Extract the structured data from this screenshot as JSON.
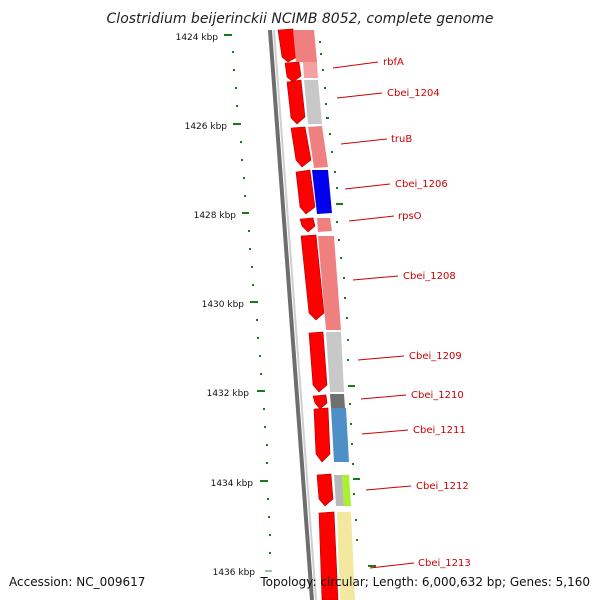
{
  "title": "Clostridium beijerinckii NCIMB 8052, complete genome",
  "accession": "Accession: NC_009617",
  "summary": "Topology: circular; Length: 6,000,632 bp; Genes: 5,160",
  "colors": {
    "ring_forward": "#ff0000",
    "gene_highlight": "#cc0000",
    "backbone": "#888888",
    "gc_ticks": "#1a7a1a"
  },
  "scale_labels": [
    "1424 kbp",
    "1426 kbp",
    "1428 kbp",
    "1430 kbp",
    "1432 kbp",
    "1434 kbp",
    "1436 kbp"
  ],
  "gene_labels": [
    "rbfA",
    "Cbei_1204",
    "truB",
    "Cbei_1206",
    "rpsO",
    "Cbei_1208",
    "Cbei_1209",
    "Cbei_1210",
    "Cbei_1211",
    "Cbei_1212",
    "Cbei_1213"
  ]
}
